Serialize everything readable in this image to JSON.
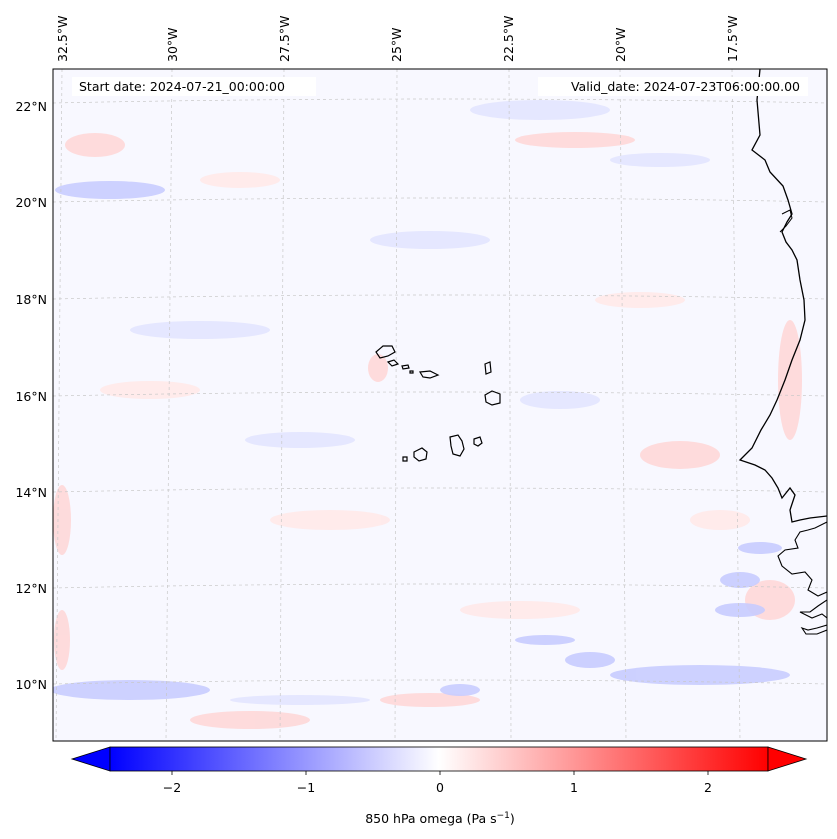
{
  "header": {
    "start_date": "Start date: 2024-07-21_00:00:00",
    "valid_date": "Valid_date: 2024-07-23T06:00:00.00"
  },
  "lon_labels": [
    "32.5°W",
    "30°W",
    "27.5°W",
    "25°W",
    "22.5°W",
    "20°W",
    "17.5°W"
  ],
  "lat_labels": [
    "22°N",
    "20°N",
    "18°N",
    "16°N",
    "14°N",
    "12°N",
    "10°N"
  ],
  "colorbar": {
    "ticks": [
      "−2",
      "−1",
      "0",
      "1",
      "2"
    ],
    "label": "850 hPa omega (Pa s",
    "label_sup": "−1",
    "label_end": ")",
    "min_color": "#0000ff",
    "mid_color": "#ffffff",
    "max_color": "#ff0000"
  },
  "colors": {
    "field_background": "#f8f8ff",
    "coastline": "#000000",
    "gridline": "#c8c8c8"
  }
}
